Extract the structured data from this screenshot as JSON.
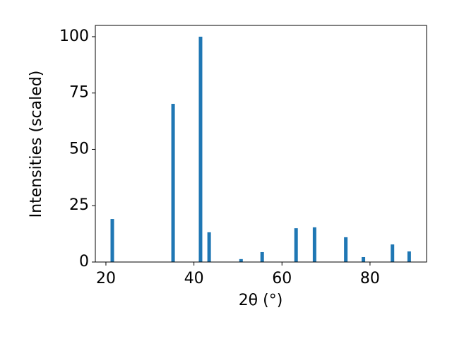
{
  "chart_data": {
    "type": "bar",
    "x_label": "2θ (°)",
    "y_label": "Intensities (scaled)",
    "x": [
      21.45,
      35.26,
      41.5,
      43.45,
      50.7,
      55.5,
      63.2,
      67.4,
      74.5,
      78.5,
      85.1,
      88.9
    ],
    "values": [
      19.1,
      70.2,
      100,
      13.2,
      1.3,
      4.4,
      15.0,
      15.4,
      11.0,
      2.2,
      7.8,
      4.7
    ],
    "color": "#1f77b4",
    "xlim": [
      17.6,
      92.85
    ],
    "xticks": [
      20,
      40,
      60,
      80
    ],
    "ylim": [
      0,
      105
    ],
    "yticks": [
      0,
      25,
      50,
      75,
      100
    ],
    "grid": false
  }
}
